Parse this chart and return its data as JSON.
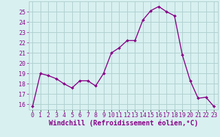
{
  "x": [
    0,
    1,
    2,
    3,
    4,
    5,
    6,
    7,
    8,
    9,
    10,
    11,
    12,
    13,
    14,
    15,
    16,
    17,
    18,
    19,
    20,
    21,
    22,
    23
  ],
  "y": [
    15.8,
    19.0,
    18.8,
    18.5,
    18.0,
    17.6,
    18.3,
    18.3,
    17.8,
    19.0,
    21.0,
    21.5,
    22.2,
    22.2,
    24.2,
    25.1,
    25.5,
    25.0,
    24.6,
    20.8,
    18.3,
    16.6,
    16.7,
    15.8
  ],
  "xlabel": "Windchill (Refroidissement éolien,°C)",
  "ylim": [
    15.5,
    26.0
  ],
  "xlim": [
    -0.5,
    23.5
  ],
  "line_color": "#880088",
  "marker_color": "#880088",
  "bg_color": "#d8f0f0",
  "grid_color": "#b0d0d0",
  "yticks": [
    16,
    17,
    18,
    19,
    20,
    21,
    22,
    23,
    24,
    25
  ],
  "xtick_labels": [
    "0",
    "1",
    "2",
    "3",
    "4",
    "5",
    "6",
    "7",
    "8",
    "9",
    "10",
    "11",
    "12",
    "13",
    "14",
    "15",
    "16",
    "17",
    "18",
    "19",
    "20",
    "21",
    "22",
    "23"
  ],
  "tick_color": "#880088",
  "tick_fontsize": 6.0,
  "xlabel_fontsize": 7.0,
  "xlabel_color": "#880088"
}
